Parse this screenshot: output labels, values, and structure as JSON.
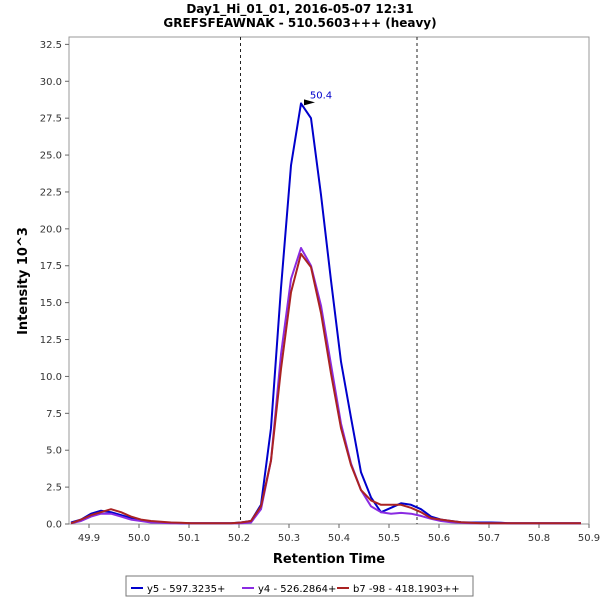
{
  "chart_data": {
    "type": "line",
    "title": "Day1_Hi_01_01, 2016-05-07 12:31",
    "subtitle": "GREFSFEAWNAK - 510.5603+++ (heavy)",
    "xlabel": "Retention Time",
    "ylabel": "Intensity 10^3",
    "xlim": [
      49.86,
      50.9
    ],
    "ylim": [
      0,
      33
    ],
    "x_ticks": [
      49.9,
      50.0,
      50.1,
      50.2,
      50.3,
      50.4,
      50.5,
      50.6,
      50.7,
      50.8,
      50.9
    ],
    "x_tick_labels": [
      "49.9",
      "50.0",
      "50.1",
      "50.2",
      "50.3",
      "50.4",
      "50.5",
      "50.6",
      "50.7",
      "50.8",
      "50.9"
    ],
    "y_ticks": [
      0,
      2.5,
      5,
      7.5,
      10,
      12.5,
      15,
      17.5,
      20,
      22.5,
      25,
      27.5,
      30,
      32.5
    ],
    "y_tick_labels": [
      "0.0",
      "2.5",
      "5.0",
      "7.5",
      "10.0",
      "12.5",
      "15.0",
      "17.5",
      "20.0",
      "22.5",
      "25.0",
      "27.5",
      "30.0",
      "32.5"
    ],
    "integration_bounds": [
      50.203,
      50.556
    ],
    "peak_annotation": {
      "label": "50.4",
      "x": 50.356,
      "y": 28.5,
      "color": "#0000cc"
    },
    "x": [
      49.864,
      49.884,
      49.904,
      49.924,
      49.944,
      49.964,
      49.984,
      50.004,
      50.024,
      50.044,
      50.064,
      50.084,
      50.104,
      50.124,
      50.144,
      50.164,
      50.184,
      50.204,
      50.224,
      50.244,
      50.264,
      50.284,
      50.304,
      50.324,
      50.344,
      50.364,
      50.384,
      50.404,
      50.424,
      50.444,
      50.464,
      50.484,
      50.504,
      50.524,
      50.544,
      50.564,
      50.584,
      50.604,
      50.624,
      50.644,
      50.664,
      50.684,
      50.704,
      50.724,
      50.744,
      50.764,
      50.784,
      50.804,
      50.824,
      50.844,
      50.864,
      50.884
    ],
    "series": [
      {
        "name": "y5 - 597.3235+",
        "color": "#0000cc",
        "values": [
          0.1,
          0.3,
          0.7,
          0.9,
          0.8,
          0.6,
          0.4,
          0.25,
          0.15,
          0.1,
          0.08,
          0.05,
          0.05,
          0.05,
          0.05,
          0.05,
          0.05,
          0.1,
          0.2,
          1.3,
          6.5,
          16.0,
          24.3,
          28.5,
          27.5,
          22.3,
          16.5,
          11.0,
          7.2,
          3.5,
          1.8,
          0.8,
          1.1,
          1.4,
          1.3,
          1.0,
          0.5,
          0.3,
          0.2,
          0.12,
          0.1,
          0.1,
          0.1,
          0.08,
          0.05,
          0.05,
          0.05,
          0.05,
          0.05,
          0.05,
          0.05,
          0.05
        ]
      },
      {
        "name": "y4 - 526.2864+",
        "color": "#8a2be2",
        "values": [
          0.05,
          0.2,
          0.5,
          0.7,
          0.7,
          0.5,
          0.3,
          0.2,
          0.1,
          0.08,
          0.05,
          0.05,
          0.05,
          0.05,
          0.05,
          0.05,
          0.05,
          0.05,
          0.1,
          1.0,
          4.3,
          11.5,
          16.6,
          18.7,
          17.5,
          14.8,
          10.8,
          6.8,
          4.1,
          2.3,
          1.2,
          0.8,
          0.7,
          0.75,
          0.7,
          0.55,
          0.35,
          0.2,
          0.12,
          0.08,
          0.05,
          0.05,
          0.05,
          0.05,
          0.05,
          0.05,
          0.05,
          0.05,
          0.05,
          0.05,
          0.05,
          0.05
        ]
      },
      {
        "name": "b7 -98 - 418.1903++",
        "color": "#aa2222",
        "values": [
          0.05,
          0.3,
          0.6,
          0.8,
          1.0,
          0.8,
          0.5,
          0.3,
          0.2,
          0.15,
          0.1,
          0.08,
          0.05,
          0.05,
          0.05,
          0.05,
          0.05,
          0.1,
          0.2,
          1.2,
          4.3,
          10.5,
          15.7,
          18.3,
          17.4,
          14.3,
          10.2,
          6.5,
          4.0,
          2.3,
          1.6,
          1.3,
          1.3,
          1.3,
          1.1,
          0.8,
          0.4,
          0.3,
          0.2,
          0.12,
          0.08,
          0.05,
          0.05,
          0.05,
          0.05,
          0.05,
          0.05,
          0.05,
          0.05,
          0.05,
          0.05,
          0.05
        ]
      }
    ],
    "legend_position": "bottom"
  }
}
